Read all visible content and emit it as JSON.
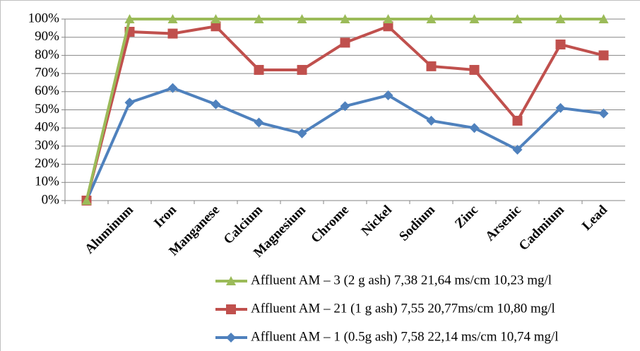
{
  "chart_data": {
    "type": "line",
    "categories": [
      null,
      "Aluminum",
      "Iron",
      "Manganese",
      "Calcium",
      "Magnesium",
      "Chrome",
      "Nickel",
      "Sodium",
      "Zinc",
      "Arsenic",
      "Cadmium",
      "Lead"
    ],
    "series": [
      {
        "name": "Affluent AM – 3 (2 g ash) 7,38 21,64 ms/cm 10,23 mg/l",
        "color": "#9bbb59",
        "marker": "triangle",
        "values": [
          0,
          100,
          100,
          100,
          100,
          100,
          100,
          100,
          100,
          100,
          100,
          100,
          100
        ]
      },
      {
        "name": "Affluent AM – 21 (1 g ash) 7,55 20,77ms/cm 10,80 mg/l",
        "color": "#c0504d",
        "marker": "square",
        "values": [
          0,
          93,
          92,
          96,
          72,
          72,
          87,
          96,
          74,
          72,
          44,
          86,
          80
        ]
      },
      {
        "name": "Affluent AM – 1 (0.5g ash) 7,58 22,14 ms/cm 10,74 mg/l",
        "color": "#4f81bd",
        "marker": "diamond",
        "values": [
          0,
          54,
          62,
          53,
          43,
          37,
          52,
          58,
          44,
          40,
          28,
          51,
          48
        ]
      }
    ],
    "ylim": [
      0,
      100
    ],
    "yticks": [
      {
        "value": 0,
        "label": "0%"
      },
      {
        "value": 10,
        "label": "10%"
      },
      {
        "value": 20,
        "label": "20%"
      },
      {
        "value": 30,
        "label": "30%"
      },
      {
        "value": 40,
        "label": "40%"
      },
      {
        "value": 50,
        "label": "50%"
      },
      {
        "value": 60,
        "label": "60%"
      },
      {
        "value": 70,
        "label": "70%"
      },
      {
        "value": 80,
        "label": "80%"
      },
      {
        "value": 90,
        "label": "90%"
      },
      {
        "value": 100,
        "label": "100%"
      }
    ],
    "grid": true
  }
}
